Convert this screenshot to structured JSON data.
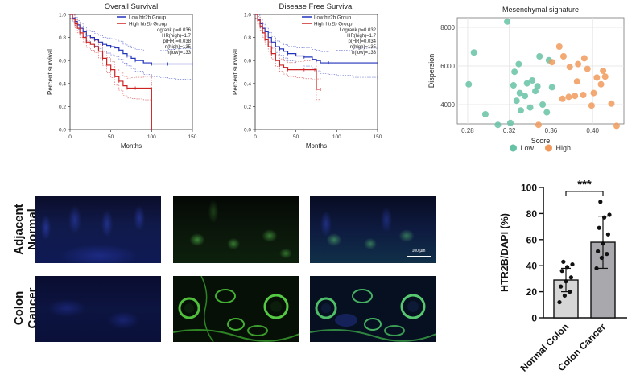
{
  "chart_data": [
    {
      "type": "line",
      "title": "Overall Survival",
      "xlabel": "Months",
      "ylabel": "Percent survival",
      "xlim": [
        0,
        150
      ],
      "ylim": [
        0,
        1.0
      ],
      "x_ticks": [
        0,
        50,
        100,
        150
      ],
      "y_ticks": [
        "0.0",
        "0.2",
        "0.4",
        "0.6",
        "0.8",
        "1.0"
      ],
      "legend_position": "top-right",
      "stats": [
        "Logrank p=0.036",
        "HR(high)=1.7",
        "p(HR)=0.038",
        "n(high)=135",
        "n(low)=133"
      ],
      "series": [
        {
          "name": "Low htr2b Group",
          "color": "#2233bb",
          "x": [
            0,
            3,
            6,
            9,
            12,
            16,
            20,
            25,
            30,
            35,
            40,
            45,
            50,
            55,
            60,
            65,
            70,
            75,
            80,
            90,
            100,
            110,
            120,
            130,
            150
          ],
          "y": [
            1.0,
            0.97,
            0.94,
            0.91,
            0.88,
            0.85,
            0.82,
            0.8,
            0.78,
            0.76,
            0.74,
            0.73,
            0.72,
            0.71,
            0.69,
            0.66,
            0.64,
            0.62,
            0.6,
            0.58,
            0.57,
            0.57,
            0.57,
            0.57,
            0.57
          ]
        },
        {
          "name": "High htr2b Group",
          "color": "#cc2222",
          "x": [
            0,
            3,
            6,
            9,
            12,
            16,
            20,
            25,
            30,
            35,
            40,
            45,
            50,
            55,
            60,
            65,
            70,
            75,
            80,
            90,
            99,
            100
          ],
          "y": [
            1.0,
            0.96,
            0.92,
            0.88,
            0.84,
            0.8,
            0.76,
            0.74,
            0.72,
            0.68,
            0.62,
            0.56,
            0.52,
            0.46,
            0.42,
            0.38,
            0.36,
            0.36,
            0.36,
            0.36,
            0.36,
            0.0
          ]
        }
      ]
    },
    {
      "type": "line",
      "title": "Disease Free Survival",
      "xlabel": "Months",
      "ylabel": "Percent survival",
      "xlim": [
        0,
        150
      ],
      "ylim": [
        0,
        1.0
      ],
      "x_ticks": [
        0,
        50,
        100,
        150
      ],
      "y_ticks": [
        "0.0",
        "0.2",
        "0.4",
        "0.6",
        "0.8",
        "1.0"
      ],
      "legend_position": "top-right",
      "stats": [
        "Logrank p=0.032",
        "HR(high)=1.7",
        "p(HR)=0.034",
        "n(high)=135",
        "n(low)=133"
      ],
      "series": [
        {
          "name": "Low htr2b Group",
          "color": "#2233bb",
          "x": [
            0,
            3,
            6,
            9,
            12,
            16,
            20,
            25,
            30,
            35,
            40,
            50,
            60,
            70,
            75,
            80,
            90,
            100,
            120,
            150
          ],
          "y": [
            1.0,
            0.96,
            0.92,
            0.88,
            0.85,
            0.8,
            0.76,
            0.72,
            0.7,
            0.68,
            0.66,
            0.64,
            0.63,
            0.61,
            0.6,
            0.58,
            0.58,
            0.58,
            0.58,
            0.58
          ]
        },
        {
          "name": "High htr2b Group",
          "color": "#cc2222",
          "x": [
            0,
            3,
            6,
            9,
            12,
            16,
            20,
            25,
            30,
            35,
            40,
            50,
            60,
            70,
            73,
            75,
            80
          ],
          "y": [
            1.0,
            0.95,
            0.9,
            0.84,
            0.78,
            0.72,
            0.66,
            0.6,
            0.56,
            0.54,
            0.52,
            0.52,
            0.52,
            0.52,
            0.52,
            0.35,
            0.35
          ]
        }
      ]
    },
    {
      "type": "scatter",
      "title": "Mesenchymal signature",
      "xlabel": "Score",
      "ylabel": "Dispersion",
      "xlim": [
        0.27,
        0.43
      ],
      "ylim": [
        3000,
        8500
      ],
      "x_ticks": [
        "0.28",
        "0.32",
        "0.36",
        "0.40"
      ],
      "y_ticks": [
        "4000",
        "6000",
        "8000"
      ],
      "grid": true,
      "legend_position": "bottom",
      "series": [
        {
          "name": "Low",
          "color": "#66c2a5",
          "points": [
            [
              0.318,
              8300
            ],
            [
              0.286,
              6700
            ],
            [
              0.281,
              5050
            ],
            [
              0.297,
              3500
            ],
            [
              0.309,
              2950
            ],
            [
              0.321,
              3050
            ],
            [
              0.325,
              5700
            ],
            [
              0.324,
              5000
            ],
            [
              0.33,
              4600
            ],
            [
              0.335,
              4450
            ],
            [
              0.329,
              6100
            ],
            [
              0.342,
              5250
            ],
            [
              0.347,
              4950
            ],
            [
              0.349,
              6500
            ],
            [
              0.352,
              4000
            ],
            [
              0.356,
              3600
            ],
            [
              0.345,
              4700
            ],
            [
              0.337,
              5100
            ],
            [
              0.331,
              3700
            ],
            [
              0.34,
              3850
            ],
            [
              0.358,
              6300
            ],
            [
              0.327,
              4200
            ],
            [
              0.361,
              4900
            ]
          ]
        },
        {
          "name": "High",
          "color": "#f19a5b",
          "points": [
            [
              0.368,
              7000
            ],
            [
              0.361,
              6200
            ],
            [
              0.348,
              2950
            ],
            [
              0.378,
              5950
            ],
            [
              0.372,
              6500
            ],
            [
              0.385,
              5200
            ],
            [
              0.377,
              4400
            ],
            [
              0.383,
              4450
            ],
            [
              0.391,
              4500
            ],
            [
              0.392,
              6400
            ],
            [
              0.395,
              5850
            ],
            [
              0.401,
              4600
            ],
            [
              0.404,
              5400
            ],
            [
              0.408,
              5050
            ],
            [
              0.41,
              5750
            ],
            [
              0.418,
              4050
            ],
            [
              0.423,
              2900
            ],
            [
              0.371,
              4300
            ],
            [
              0.386,
              6100
            ],
            [
              0.399,
              3950
            ],
            [
              0.412,
              5450
            ]
          ]
        }
      ]
    },
    {
      "type": "bar",
      "title": "",
      "xlabel": "",
      "ylabel": "HTR2B/DAPI (%)",
      "categories": [
        "Normal Colon",
        "Colon Cancer"
      ],
      "values": [
        29,
        58
      ],
      "error_sd": [
        9,
        20
      ],
      "ylim": [
        0,
        100
      ],
      "y_ticks": [
        "0",
        "20",
        "40",
        "60",
        "80",
        "100"
      ],
      "significance": "***",
      "points": [
        [
          12,
          17,
          20,
          24,
          28,
          31,
          36,
          39,
          41,
          43
        ],
        [
          38,
          46,
          49,
          51,
          57,
          64,
          69,
          77,
          79,
          89
        ]
      ]
    }
  ],
  "micrographs": {
    "row_labels": [
      "Adjacent\nNormal",
      "Colon\nCancer"
    ],
    "scale_bar": "100 µm"
  }
}
